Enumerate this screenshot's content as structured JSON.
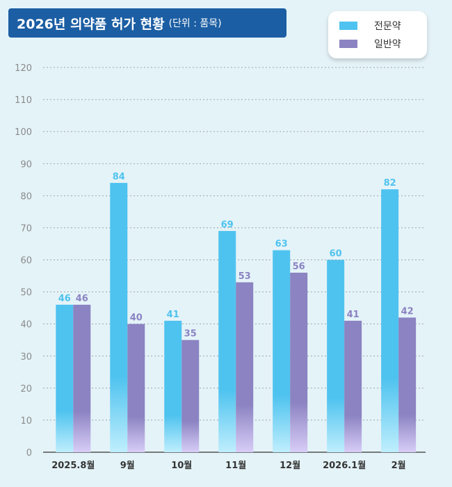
{
  "title": {
    "main": "2026년 의약품 허가 현황",
    "unit": "(단위 : 품목)"
  },
  "colors": {
    "background": "#e4f3f8",
    "banner": "#1c5ea3",
    "series1": "#4fc3ef",
    "series2": "#8b83c2",
    "grid": "#9aa4aa",
    "axis": "#333333"
  },
  "chart_data": {
    "type": "bar",
    "title": "2026년 의약품 허가 현황",
    "subtitle": "(단위 : 품목)",
    "xlabel": "",
    "ylabel": "",
    "categories": [
      "2025.8월",
      "9월",
      "10월",
      "11월",
      "12월",
      "2026.1월",
      "2월"
    ],
    "series": [
      {
        "name": "전문약",
        "values": [
          46,
          84,
          41,
          69,
          63,
          60,
          82
        ]
      },
      {
        "name": "일반약",
        "values": [
          46,
          40,
          35,
          53,
          56,
          41,
          42
        ]
      }
    ],
    "ylim": [
      0,
      120
    ],
    "yticks": [
      0,
      10,
      20,
      30,
      40,
      50,
      60,
      70,
      80,
      90,
      100,
      110,
      120
    ],
    "grid": true,
    "legend_position": "top-right"
  }
}
